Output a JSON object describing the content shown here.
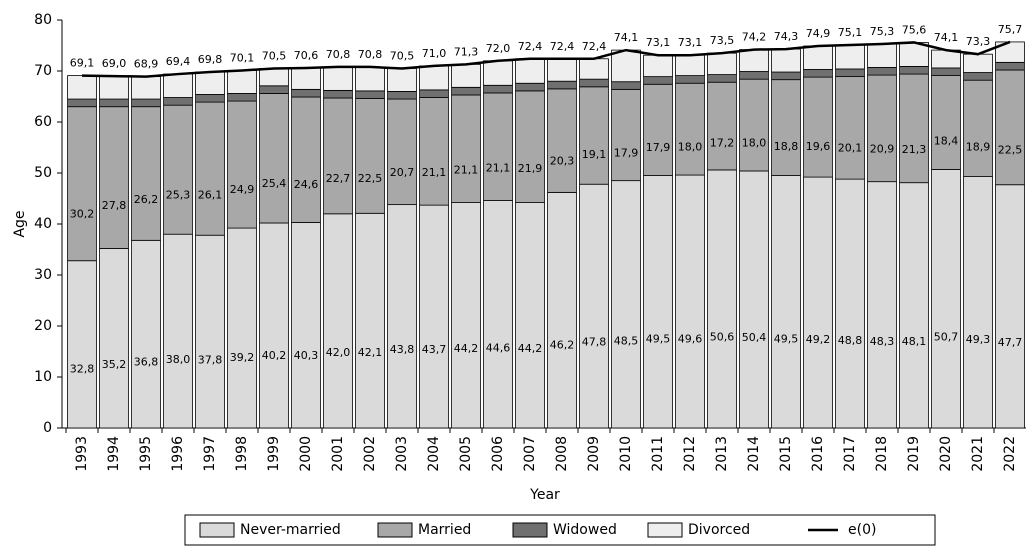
{
  "chart_data": {
    "type": "bar",
    "stacked": true,
    "x_label": "Year",
    "y_label": "Age",
    "categories": [
      "1993",
      "1994",
      "1995",
      "1996",
      "1997",
      "1998",
      "1999",
      "2000",
      "2001",
      "2002",
      "2003",
      "2004",
      "2005",
      "2006",
      "2007",
      "2008",
      "2009",
      "2010",
      "2011",
      "2012",
      "2013",
      "2014",
      "2015",
      "2016",
      "2017",
      "2018",
      "2019",
      "2020",
      "2021",
      "2022"
    ],
    "ylim": [
      0,
      80
    ],
    "yticks": [
      0,
      10,
      20,
      30,
      40,
      50,
      60,
      70,
      80
    ],
    "legend": "bottom",
    "series": [
      {
        "name": "Never-married",
        "color": "#dadada",
        "values": [
          32.8,
          35.2,
          36.8,
          38.0,
          37.8,
          39.2,
          40.2,
          40.3,
          42.0,
          42.1,
          43.8,
          43.7,
          44.2,
          44.6,
          44.2,
          46.2,
          47.8,
          48.5,
          49.5,
          49.6,
          50.6,
          50.4,
          49.5,
          49.2,
          48.8,
          48.3,
          48.1,
          50.7,
          49.3,
          47.7
        ],
        "value_labels": [
          "32,8",
          "35,2",
          "36,8",
          "38,0",
          "37,8",
          "39,2",
          "40,2",
          "40,3",
          "42,0",
          "42,1",
          "43,8",
          "43,7",
          "44,2",
          "44,6",
          "44,2",
          "46,2",
          "47,8",
          "48,5",
          "49,5",
          "49,6",
          "50,6",
          "50,4",
          "49,5",
          "49,2",
          "48,8",
          "48,3",
          "48,1",
          "50,7",
          "49,3",
          "47,7"
        ]
      },
      {
        "name": "Married",
        "color": "#a8a8a8",
        "values": [
          30.2,
          27.8,
          26.2,
          25.3,
          26.1,
          24.9,
          25.4,
          24.6,
          22.7,
          22.5,
          20.7,
          21.1,
          21.1,
          21.1,
          21.9,
          20.3,
          19.1,
          17.9,
          17.9,
          18.0,
          17.2,
          18.0,
          18.8,
          19.6,
          20.1,
          20.9,
          21.3,
          18.4,
          18.9,
          22.5
        ],
        "value_labels": [
          "30,2",
          "27,8",
          "26,2",
          "25,3",
          "26,1",
          "24,9",
          "25,4",
          "24,6",
          "22,7",
          "22,5",
          "20,7",
          "21,1",
          "21,1",
          "21,1",
          "21,9",
          "20,3",
          "19,1",
          "17,9",
          "17,9",
          "18,0",
          "17,2",
          "18,0",
          "18,8",
          "19,6",
          "20,1",
          "20,9",
          "21,3",
          "18,4",
          "18,9",
          "22,5"
        ]
      },
      {
        "name": "Widowed",
        "color": "#707070",
        "values": [
          1.5,
          1.5,
          1.5,
          1.5,
          1.5,
          1.5,
          1.5,
          1.5,
          1.5,
          1.5,
          1.5,
          1.5,
          1.5,
          1.5,
          1.5,
          1.5,
          1.5,
          1.5,
          1.5,
          1.5,
          1.5,
          1.5,
          1.5,
          1.5,
          1.5,
          1.5,
          1.5,
          1.5,
          1.5,
          1.5
        ]
      },
      {
        "name": "Divorced",
        "color": "#eeeeee",
        "values": [
          4.6,
          4.5,
          4.4,
          4.6,
          4.4,
          4.5,
          3.4,
          4.2,
          4.6,
          4.7,
          4.5,
          4.7,
          4.5,
          4.8,
          4.8,
          4.4,
          4.0,
          6.2,
          4.2,
          4.0,
          4.2,
          4.3,
          4.5,
          4.6,
          4.7,
          4.6,
          4.7,
          3.5,
          3.6,
          4.0
        ]
      },
      {
        "name": "e(0)",
        "type": "line",
        "color": "#000000",
        "values": [
          69.1,
          69.0,
          68.9,
          69.4,
          69.8,
          70.1,
          70.5,
          70.6,
          70.8,
          70.8,
          70.5,
          71.0,
          71.3,
          72.0,
          72.4,
          72.4,
          72.4,
          74.1,
          73.1,
          73.1,
          73.5,
          74.2,
          74.3,
          74.9,
          75.1,
          75.3,
          75.6,
          74.1,
          73.3,
          75.7
        ],
        "value_labels": [
          "69,1",
          "69,0",
          "68,9",
          "69,4",
          "69,8",
          "70,1",
          "70,5",
          "70,6",
          "70,8",
          "70,8",
          "70,5",
          "71,0",
          "71,3",
          "72,0",
          "72,4",
          "72,4",
          "72,4",
          "74,1",
          "73,1",
          "73,1",
          "73,5",
          "74,2",
          "74,3",
          "74,9",
          "75,1",
          "75,3",
          "75,6",
          "74,1",
          "73,3",
          "75,7"
        ]
      }
    ]
  }
}
